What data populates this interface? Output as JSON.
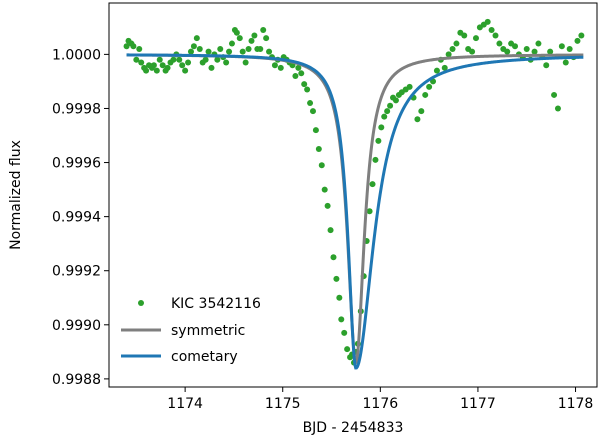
{
  "chart_data": {
    "type": "scatter",
    "xlabel": "BJD - 2454833",
    "ylabel": "Normalized flux",
    "xlim": [
      1173.22,
      1178.22
    ],
    "ylim": [
      0.99877,
      1.00019
    ],
    "xticks": [
      1174,
      1175,
      1176,
      1177,
      1178
    ],
    "xtick_labels": [
      "1174",
      "1175",
      "1176",
      "1177",
      "1178"
    ],
    "yticks": [
      0.9988,
      0.999,
      0.9992,
      0.9994,
      0.9996,
      0.9998,
      1.0
    ],
    "ytick_labels": [
      "0.9988",
      "0.9990",
      "0.9992",
      "0.9994",
      "0.9996",
      "0.9998",
      "1.0000"
    ],
    "grid": false,
    "legend_position": "lower-left",
    "series": [
      {
        "name": "KIC 3542116",
        "kind": "scatter",
        "color": "#2ca02c",
        "points": [
          [
            1173.4,
            1.00003
          ],
          [
            1173.42,
            1.00005
          ],
          [
            1173.45,
            1.00004
          ],
          [
            1173.47,
            1.00003
          ],
          [
            1173.5,
            0.99998
          ],
          [
            1173.53,
            1.00002
          ],
          [
            1173.55,
            0.99997
          ],
          [
            1173.58,
            0.99995
          ],
          [
            1173.6,
            0.99994
          ],
          [
            1173.63,
            0.99996
          ],
          [
            1173.66,
            0.99995
          ],
          [
            1173.68,
            0.99996
          ],
          [
            1173.71,
            0.99994
          ],
          [
            1173.74,
            0.99998
          ],
          [
            1173.77,
            0.99996
          ],
          [
            1173.8,
            0.99994
          ],
          [
            1173.82,
            0.99995
          ],
          [
            1173.85,
            0.99997
          ],
          [
            1173.88,
            0.99998
          ],
          [
            1173.91,
            1.0
          ],
          [
            1173.94,
            0.99998
          ],
          [
            1173.97,
            0.99996
          ],
          [
            1174.0,
            0.99994
          ],
          [
            1174.03,
            0.99997
          ],
          [
            1174.06,
            1.00001
          ],
          [
            1174.09,
            1.00003
          ],
          [
            1174.12,
            1.00006
          ],
          [
            1174.15,
            1.00002
          ],
          [
            1174.18,
            0.99997
          ],
          [
            1174.21,
            0.99998
          ],
          [
            1174.24,
            1.00001
          ],
          [
            1174.27,
            0.99995
          ],
          [
            1174.3,
            1.0
          ],
          [
            1174.33,
            0.99998
          ],
          [
            1174.36,
            1.00002
          ],
          [
            1174.39,
            0.99999
          ],
          [
            1174.42,
            0.99997
          ],
          [
            1174.45,
            1.00001
          ],
          [
            1174.48,
            1.00004
          ],
          [
            1174.51,
            1.00009
          ],
          [
            1174.53,
            1.00008
          ],
          [
            1174.56,
            1.00006
          ],
          [
            1174.59,
            1.00001
          ],
          [
            1174.62,
            0.99997
          ],
          [
            1174.65,
            1.00002
          ],
          [
            1174.68,
            1.00005
          ],
          [
            1174.71,
            1.00007
          ],
          [
            1174.74,
            1.00002
          ],
          [
            1174.77,
            1.00002
          ],
          [
            1174.8,
            1.00009
          ],
          [
            1174.83,
            1.00006
          ],
          [
            1174.86,
            1.00001
          ],
          [
            1174.89,
            0.99999
          ],
          [
            1174.92,
            0.99996
          ],
          [
            1174.95,
            0.99998
          ],
          [
            1174.98,
            0.99995
          ],
          [
            1175.01,
            0.99999
          ],
          [
            1175.04,
            0.99998
          ],
          [
            1175.07,
            0.99997
          ],
          [
            1175.1,
            0.99996
          ],
          [
            1175.13,
            0.99992
          ],
          [
            1175.16,
            0.99995
          ],
          [
            1175.19,
            0.99993
          ],
          [
            1175.22,
            0.99989
          ],
          [
            1175.25,
            0.99987
          ],
          [
            1175.28,
            0.99982
          ],
          [
            1175.31,
            0.99979
          ],
          [
            1175.34,
            0.99972
          ],
          [
            1175.37,
            0.99965
          ],
          [
            1175.4,
            0.99959
          ],
          [
            1175.43,
            0.9995
          ],
          [
            1175.46,
            0.99944
          ],
          [
            1175.49,
            0.99935
          ],
          [
            1175.52,
            0.99925
          ],
          [
            1175.55,
            0.99917
          ],
          [
            1175.58,
            0.9991
          ],
          [
            1175.6,
            0.99902
          ],
          [
            1175.63,
            0.99897
          ],
          [
            1175.66,
            0.99891
          ],
          [
            1175.69,
            0.99888
          ],
          [
            1175.71,
            0.99889
          ],
          [
            1175.73,
            0.99886
          ],
          [
            1175.75,
            0.9989
          ],
          [
            1175.77,
            0.99893
          ],
          [
            1175.8,
            0.99905
          ],
          [
            1175.83,
            0.99918
          ],
          [
            1175.86,
            0.99931
          ],
          [
            1175.89,
            0.99942
          ],
          [
            1175.92,
            0.99952
          ],
          [
            1175.95,
            0.99961
          ],
          [
            1175.98,
            0.99968
          ],
          [
            1176.01,
            0.99973
          ],
          [
            1176.04,
            0.99977
          ],
          [
            1176.07,
            0.99979
          ],
          [
            1176.1,
            0.99981
          ],
          [
            1176.13,
            0.99984
          ],
          [
            1176.16,
            0.99983
          ],
          [
            1176.19,
            0.99985
          ],
          [
            1176.22,
            0.99986
          ],
          [
            1176.26,
            0.99987
          ],
          [
            1176.3,
            0.99988
          ],
          [
            1176.34,
            0.99984
          ],
          [
            1176.38,
            0.99976
          ],
          [
            1176.42,
            0.99979
          ],
          [
            1176.46,
            0.99985
          ],
          [
            1176.5,
            0.99988
          ],
          [
            1176.54,
            0.9999
          ],
          [
            1176.58,
            0.99994
          ],
          [
            1176.62,
            0.99998
          ],
          [
            1176.66,
            0.99995
          ],
          [
            1176.7,
            1.0
          ],
          [
            1176.74,
            1.00002
          ],
          [
            1176.78,
            1.00004
          ],
          [
            1176.82,
            1.00008
          ],
          [
            1176.86,
            1.00007
          ],
          [
            1176.9,
            1.00002
          ],
          [
            1176.94,
            1.00001
          ],
          [
            1176.98,
            1.00006
          ],
          [
            1177.02,
            1.0001
          ],
          [
            1177.06,
            1.00011
          ],
          [
            1177.1,
            1.00012
          ],
          [
            1177.14,
            1.00009
          ],
          [
            1177.18,
            1.00007
          ],
          [
            1177.22,
            1.00004
          ],
          [
            1177.26,
            1.00002
          ],
          [
            1177.3,
            1.00001
          ],
          [
            1177.34,
            1.00004
          ],
          [
            1177.38,
            1.00003
          ],
          [
            1177.42,
            1.0
          ],
          [
            1177.46,
            0.99999
          ],
          [
            1177.5,
            1.00002
          ],
          [
            1177.54,
            0.99998
          ],
          [
            1177.58,
            1.00001
          ],
          [
            1177.62,
            1.00004
          ],
          [
            1177.66,
            0.99999
          ],
          [
            1177.7,
            0.99996
          ],
          [
            1177.74,
            1.00001
          ],
          [
            1177.78,
            0.99985
          ],
          [
            1177.82,
            0.9998
          ],
          [
            1177.86,
            1.00003
          ],
          [
            1177.9,
            0.99997
          ],
          [
            1177.94,
            1.00002
          ],
          [
            1177.98,
            0.99999
          ],
          [
            1178.02,
            1.00005
          ],
          [
            1178.06,
            1.00007
          ]
        ]
      },
      {
        "name": "symmetric",
        "kind": "line",
        "color": "#7f7f7f",
        "center": 1175.75,
        "depth": 0.00114,
        "width": 0.155
      },
      {
        "name": "cometary",
        "kind": "line",
        "color": "#1f77b4",
        "center": 1175.75,
        "depth": 0.00116,
        "width_ingress": 0.145,
        "width_egress": 0.33
      }
    ]
  }
}
